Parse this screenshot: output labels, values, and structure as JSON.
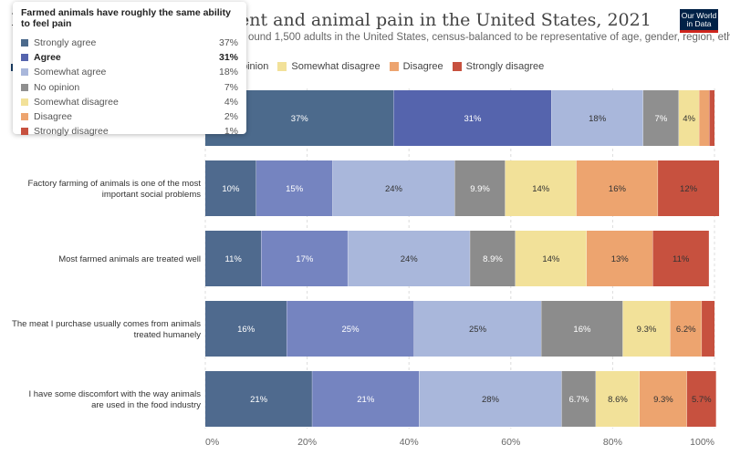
{
  "header": {
    "title_lead": "I",
    "title": "ent and animal pain in the United States, 2021",
    "subtitle": "ound 1,500 adults in the United States, census-balanced to be representative of age, gender, region, ethnicity,",
    "logo_line1": "Our World",
    "logo_line2": "in Data"
  },
  "legend": {
    "items": [
      {
        "label": "pinion",
        "color": "#9a9a9a"
      },
      {
        "label": "Somewhat disagree",
        "color": "#f2e199"
      },
      {
        "label": "Disagree",
        "color": "#eda46f"
      },
      {
        "label": "Strongly disagree",
        "color": "#c7513f"
      }
    ]
  },
  "tooltip": {
    "title": "Farmed animals have roughly the same ability to feel pain",
    "highlight": "Agree",
    "rows": [
      {
        "label": "Strongly agree",
        "value": "37%",
        "color": "#4c6a8c"
      },
      {
        "label": "Agree",
        "value": "31%",
        "color": "#5564ad"
      },
      {
        "label": "Somewhat agree",
        "value": "18%",
        "color": "#a9b7db"
      },
      {
        "label": "No opinion",
        "value": "7%",
        "color": "#8f8f8f"
      },
      {
        "label": "Somewhat disagree",
        "value": "4%",
        "color": "#f2e199"
      },
      {
        "label": "Disagree",
        "value": "2%",
        "color": "#eda46f"
      },
      {
        "label": "Strongly disagree",
        "value": "1%",
        "color": "#c7513f"
      }
    ]
  },
  "chart_data": {
    "type": "bar",
    "orientation": "horizontal",
    "stacked": true,
    "categories": [
      "",
      "Factory farming of animals is one of the most important social problems",
      "Most farmed animals are treated well",
      "The meat I purchase usually comes from animals treated humanely",
      "I have some discomfort with the way animals are used in the food industry"
    ],
    "series": [
      {
        "name": "Strongly agree",
        "color": "#4c6a8c",
        "values": [
          37,
          10,
          11,
          16,
          21
        ],
        "labels": [
          "37%",
          "10%",
          "11%",
          "16%",
          "21%"
        ]
      },
      {
        "name": "Agree",
        "color": "#5564ad",
        "values": [
          31,
          15,
          17,
          25,
          21
        ],
        "labels": [
          "31%",
          "15%",
          "17%",
          "25%",
          "21%"
        ]
      },
      {
        "name": "Somewhat agree",
        "color": "#a9b7db",
        "values": [
          18,
          24,
          24,
          25,
          28
        ],
        "labels": [
          "18%",
          "24%",
          "24%",
          "25%",
          "28%"
        ]
      },
      {
        "name": "No opinion",
        "color": "#8f8f8f",
        "values": [
          7,
          9.9,
          8.9,
          16,
          6.7
        ],
        "labels": [
          "7%",
          "9.9%",
          "8.9%",
          "16%",
          "6.7%"
        ]
      },
      {
        "name": "Somewhat disagree",
        "color": "#f2e199",
        "values": [
          4,
          14,
          14,
          9.3,
          8.6
        ],
        "labels": [
          "4%",
          "14%",
          "14%",
          "9.3%",
          "8.6%"
        ]
      },
      {
        "name": "Disagree",
        "color": "#eda46f",
        "values": [
          2,
          16,
          13,
          6.2,
          9.3
        ],
        "labels": [
          "",
          "16%",
          "13%",
          "6.2%",
          "9.3%"
        ]
      },
      {
        "name": "Strongly disagree",
        "color": "#c7513f",
        "values": [
          1,
          12,
          11,
          2.5,
          5.7
        ],
        "labels": [
          "",
          "12%",
          "11%",
          "",
          "5.7%"
        ]
      }
    ],
    "highlight_series": "Agree",
    "highlight_category_index": 1,
    "xlim": [
      0,
      100
    ],
    "xticks": [
      "0%",
      "20%",
      "40%",
      "60%",
      "80%",
      "100%"
    ],
    "grid": true
  }
}
